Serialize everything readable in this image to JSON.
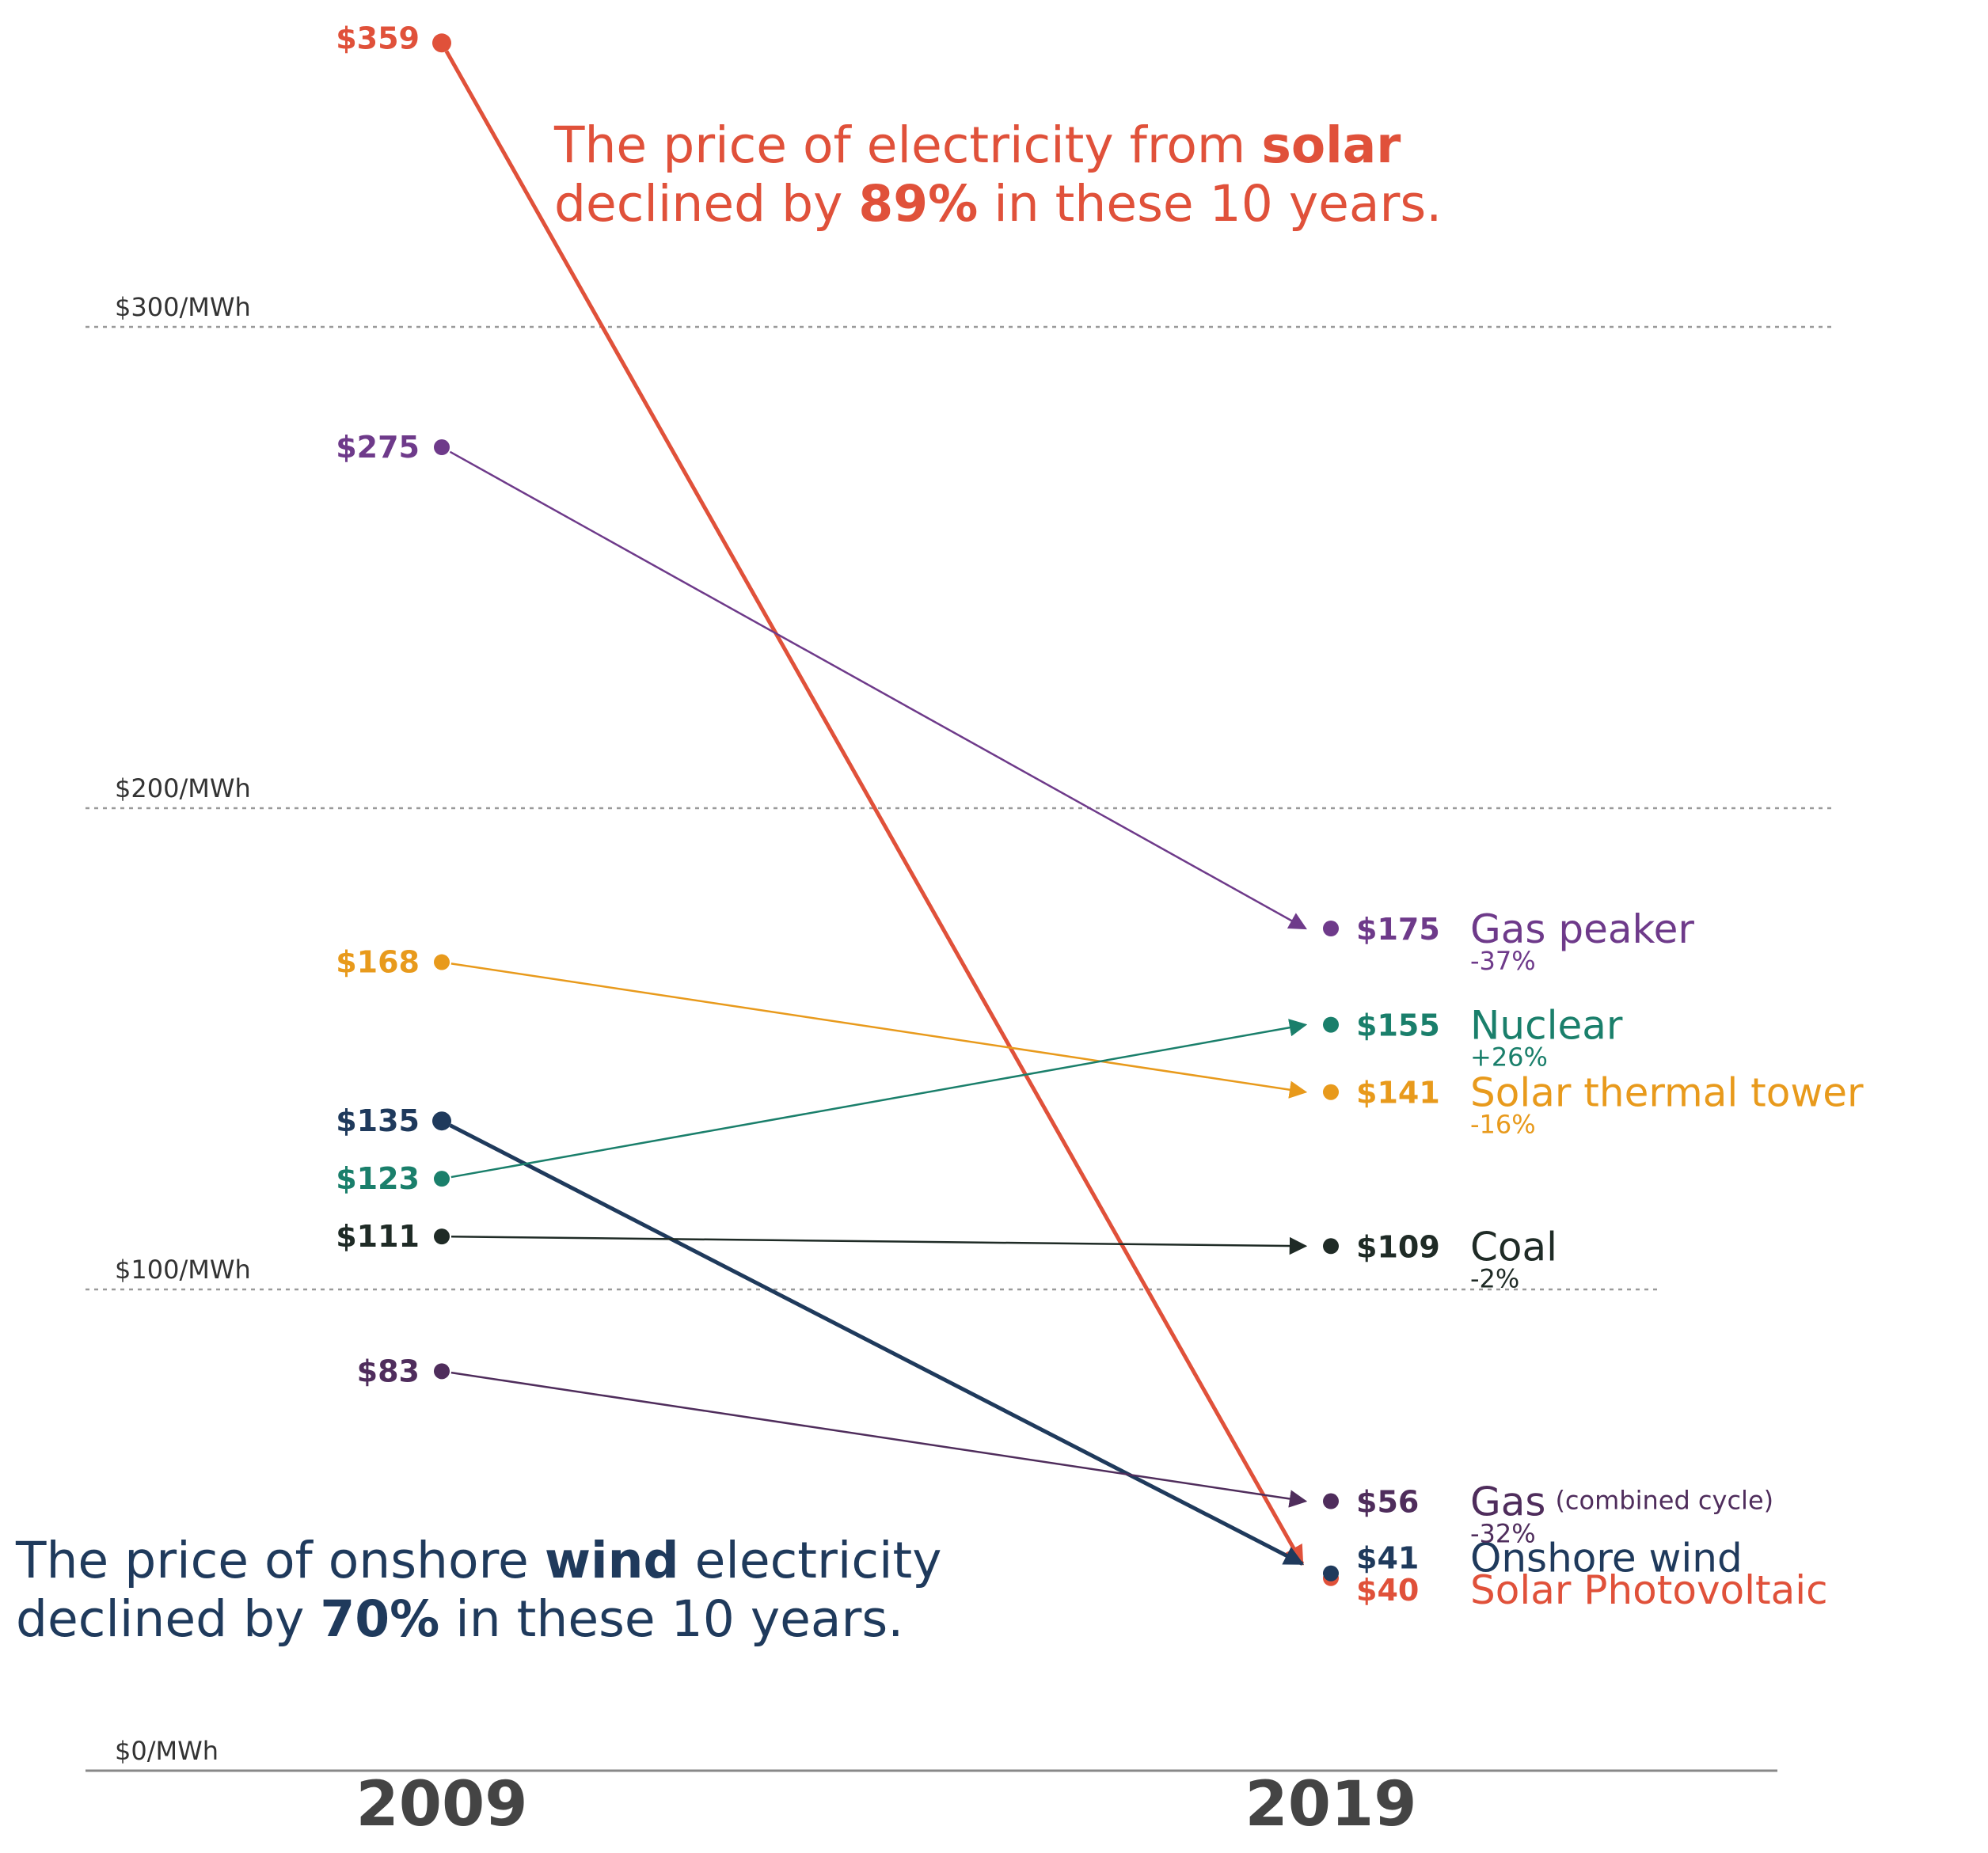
{
  "chart_data": {
    "type": "slope",
    "title": "",
    "x": [
      "2009",
      "2019"
    ],
    "ylabel": "",
    "ylim": [
      0,
      359
    ],
    "grid": true,
    "gridlines": [
      {
        "value": 0,
        "label": "$0/MWh"
      },
      {
        "value": 100,
        "label": "$100/MWh"
      },
      {
        "value": 200,
        "label": "$200/MWh"
      },
      {
        "value": 300,
        "label": "$300/MWh"
      }
    ],
    "series": [
      {
        "id": "solar-pv",
        "name": "Solar Photovoltaic",
        "color": "#e0513a",
        "values": [
          359,
          40
        ],
        "start_label": "$359",
        "end_label": "$40",
        "change": ""
      },
      {
        "id": "gas-peaker",
        "name": "Gas peaker",
        "color": "#6e3a8a",
        "values": [
          275,
          175
        ],
        "start_label": "$275",
        "end_label": "$175",
        "change": "-37%"
      },
      {
        "id": "solar-thermal",
        "name": "Solar thermal tower",
        "color": "#e89a1c",
        "values": [
          168,
          141
        ],
        "start_label": "$168",
        "end_label": "$141",
        "change": "-16%"
      },
      {
        "id": "onshore-wind",
        "name": "Onshore wind",
        "color": "#1f3a5c",
        "values": [
          135,
          41
        ],
        "start_label": "$135",
        "end_label": "$41",
        "change": ""
      },
      {
        "id": "nuclear",
        "name": "Nuclear",
        "color": "#1a7f6b",
        "values": [
          123,
          155
        ],
        "start_label": "$123",
        "end_label": "$155",
        "change": "+26%"
      },
      {
        "id": "coal",
        "name": "Coal",
        "color": "#1f2b26",
        "values": [
          111,
          109
        ],
        "start_label": "$111",
        "end_label": "$109",
        "change": "-2%"
      },
      {
        "id": "gas-cc",
        "name": "Gas",
        "name_suffix": "(combined cycle)",
        "color": "#4f2d5c",
        "values": [
          83,
          56
        ],
        "start_label": "$83",
        "end_label": "$56",
        "change": "-32%"
      }
    ],
    "annotations": [
      {
        "id": "solar",
        "color": "#e0513a",
        "emphasis": "#e0513a",
        "lines": [
          [
            {
              "text": "The price of electricity from ",
              "bold": false
            },
            {
              "text": "solar",
              "bold": true
            }
          ],
          [
            {
              "text": "declined by ",
              "bold": false
            },
            {
              "text": "89%",
              "bold": true
            },
            {
              "text": " in these 10 years.",
              "bold": false
            }
          ]
        ]
      },
      {
        "id": "wind",
        "color": "#1f3a5c",
        "emphasis": "#1f3a5c",
        "lines": [
          [
            {
              "text": "The price of onshore ",
              "bold": false
            },
            {
              "text": "wind",
              "bold": true
            },
            {
              "text": " electricity",
              "bold": false
            }
          ],
          [
            {
              "text": "declined by ",
              "bold": false
            },
            {
              "text": "70%",
              "bold": true
            },
            {
              "text": " in these 10 years.",
              "bold": false
            }
          ]
        ]
      }
    ]
  }
}
